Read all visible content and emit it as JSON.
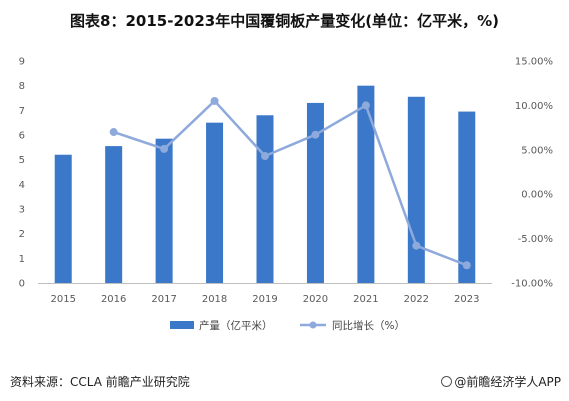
{
  "title": "图表8：2015-2023年中国覆铜板产量变化(单位：亿平米，%)",
  "source": "资料来源：CCLA 前瞻产业研究院",
  "brand": "@前瞻经济学人APP",
  "chart_data": {
    "type": "bar",
    "title": "图表8：2015-2023年中国覆铜板产量变化(单位：亿平米，%)",
    "categories": [
      "2015",
      "2016",
      "2017",
      "2018",
      "2019",
      "2020",
      "2021",
      "2022",
      "2023"
    ],
    "series": [
      {
        "name": "产量（亿平米）",
        "type": "bar",
        "axis": "left",
        "color": "#3B78C9",
        "values": [
          5.2,
          5.55,
          5.85,
          6.5,
          6.8,
          7.3,
          8.0,
          7.55,
          6.95
        ]
      },
      {
        "name": "同比增长（%）",
        "type": "line",
        "axis": "right",
        "color": "#8EA9DB",
        "values": [
          null,
          7.0,
          5.1,
          10.5,
          4.3,
          6.7,
          10.0,
          -5.8,
          -8.0
        ]
      }
    ],
    "y_left": {
      "min": 0,
      "max": 9,
      "ticks": [
        "0",
        "1",
        "2",
        "3",
        "4",
        "5",
        "6",
        "7",
        "8",
        "9"
      ]
    },
    "y_right": {
      "min": -10,
      "max": 15,
      "ticks": [
        "-10.00%",
        "-5.00%",
        "0.00%",
        "5.00%",
        "10.00%",
        "15.00%"
      ]
    },
    "grid": false,
    "legend_position": "bottom"
  }
}
